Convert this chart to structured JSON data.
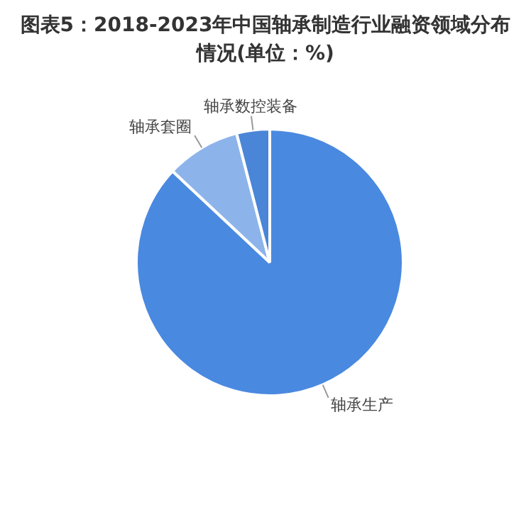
{
  "chart_data": {
    "type": "pie",
    "title": "图表5：2018-2023年中国轴承制造行业融资领域分布情况(单位：%)",
    "categories": [
      "轴承生产",
      "轴承套圈",
      "轴承数控装备"
    ],
    "values": [
      87,
      9,
      4
    ],
    "colors": [
      "#4a89e0",
      "#8db4ea",
      "#4a85d8"
    ],
    "legend": false
  }
}
